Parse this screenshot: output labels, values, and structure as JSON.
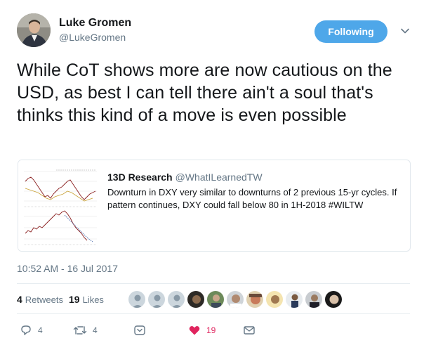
{
  "tweet": {
    "author_name": "Luke Gromen",
    "author_handle": "@LukeGromen",
    "follow_label": "Following",
    "text": "While CoT shows more are now cautious on the USD, as best I can tell there ain't a soul that's thinks this kind of a move is even possible",
    "timestamp": "10:52 AM - 16 Jul 2017"
  },
  "card": {
    "author": "13D Research",
    "handle": "@WhatILearnedTW",
    "description": "Downturn in DXY very similar to downturns of 2 previous 15-yr cycles. If pattern continues, DXY could fall below 80 in 1H-2018 #WILTW"
  },
  "stats": {
    "retweets_count": "4",
    "retweets_label": "Retweets",
    "likes_count": "19",
    "likes_label": "Likes"
  },
  "actions": {
    "reply_count": "4",
    "retweet_count": "4",
    "like_count": "19"
  },
  "colors": {
    "follow_button": "#4ea7e9",
    "like_active": "#e0245e",
    "secondary_text": "#657786"
  }
}
